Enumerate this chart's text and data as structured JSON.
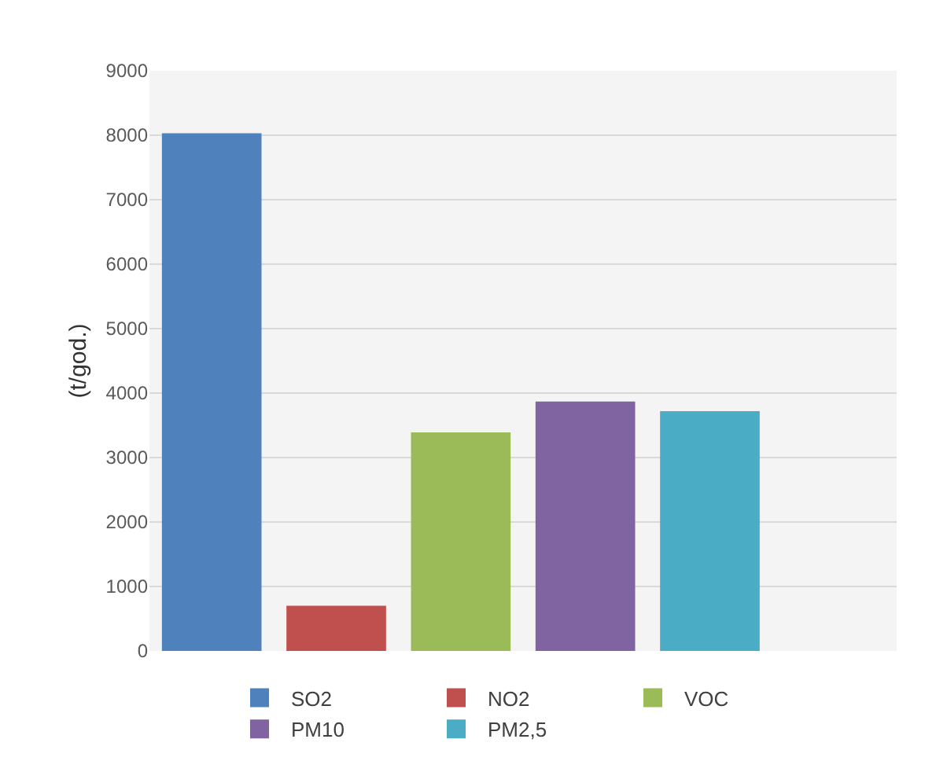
{
  "chart_data": {
    "type": "bar",
    "ylabel": "(t/god.)",
    "categories": [
      null,
      null,
      null,
      null,
      null,
      null
    ],
    "series": [
      {
        "name": "SO2",
        "color": "#4f81bd",
        "values": [
          8030,
          null,
          null,
          null,
          null,
          null
        ]
      },
      {
        "name": "NO2",
        "color": "#c0504d",
        "values": [
          null,
          700,
          null,
          null,
          null,
          null
        ]
      },
      {
        "name": "VOC",
        "color": "#9bbb59",
        "values": [
          null,
          null,
          3390,
          null,
          null,
          null
        ]
      },
      {
        "name": "PM10",
        "color": "#8064a2",
        "values": [
          null,
          null,
          null,
          3870,
          null,
          null
        ]
      },
      {
        "name": "PM2,5",
        "color": "#4bacc6",
        "values": [
          null,
          null,
          null,
          null,
          3720,
          null
        ]
      }
    ],
    "ylim": [
      0,
      9000
    ],
    "yticks": [
      0,
      1000,
      2000,
      3000,
      4000,
      5000,
      6000,
      7000,
      8000,
      9000
    ],
    "grid": "y",
    "legend": "bottom"
  }
}
